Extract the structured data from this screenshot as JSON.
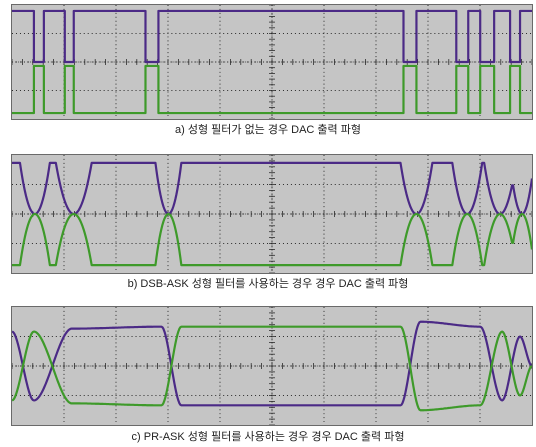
{
  "colors": {
    "panel_bg": "#c5c5c5",
    "grid": "#2b2b2b",
    "purple_trace": "#4b2a86",
    "green_trace": "#3e9a2a"
  },
  "panels": [
    {
      "id": "a",
      "caption": "a) 성형 필터가 없는 경우 DAC 출력 파형",
      "shape": "square"
    },
    {
      "id": "b",
      "caption": "b) DSB-ASK 성형 필터를 사용하는 경우 경우 DAC 출력 파형",
      "shape": "dip"
    },
    {
      "id": "c",
      "caption": "c) PR-ASK 성형 필터를 사용하는 경우 경우 DAC 출력 파형",
      "shape": "cross"
    }
  ]
}
